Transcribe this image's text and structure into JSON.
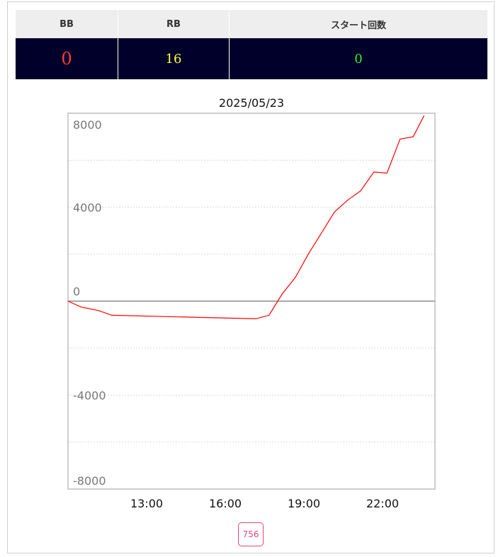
{
  "stats": {
    "headers": [
      "BB",
      "RB",
      "スタート回数"
    ],
    "values": [
      "0",
      "16",
      "0"
    ],
    "colors": [
      "#ff3b3b",
      "#ffff40",
      "#33ee33"
    ]
  },
  "chart_data": {
    "type": "line",
    "title": "2025/05/23",
    "xlabel": "",
    "ylabel": "",
    "xlim": [
      "10:00",
      "24:00"
    ],
    "ylim": [
      -8000,
      8000
    ],
    "y_ticks": [
      8000,
      4000,
      0,
      -4000,
      -8000
    ],
    "x_ticks": [
      "13:00",
      "16:00",
      "19:00",
      "22:00"
    ],
    "grid": true,
    "series": [
      {
        "color": "#ff0000",
        "points": [
          [
            "10:00",
            0
          ],
          [
            "10:30",
            -250
          ],
          [
            "11:10",
            -400
          ],
          [
            "11:40",
            -600
          ],
          [
            "17:10",
            -750
          ],
          [
            "17:40",
            -600
          ],
          [
            "18:10",
            300
          ],
          [
            "18:40",
            1000
          ],
          [
            "19:10",
            2000
          ],
          [
            "19:40",
            2900
          ],
          [
            "20:10",
            3800
          ],
          [
            "20:40",
            4300
          ],
          [
            "21:10",
            4700
          ],
          [
            "21:40",
            5500
          ],
          [
            "22:10",
            5450
          ],
          [
            "22:40",
            6900
          ],
          [
            "23:10",
            7000
          ],
          [
            "23:35",
            7900
          ]
        ]
      }
    ]
  },
  "pager": {
    "label": "756"
  }
}
